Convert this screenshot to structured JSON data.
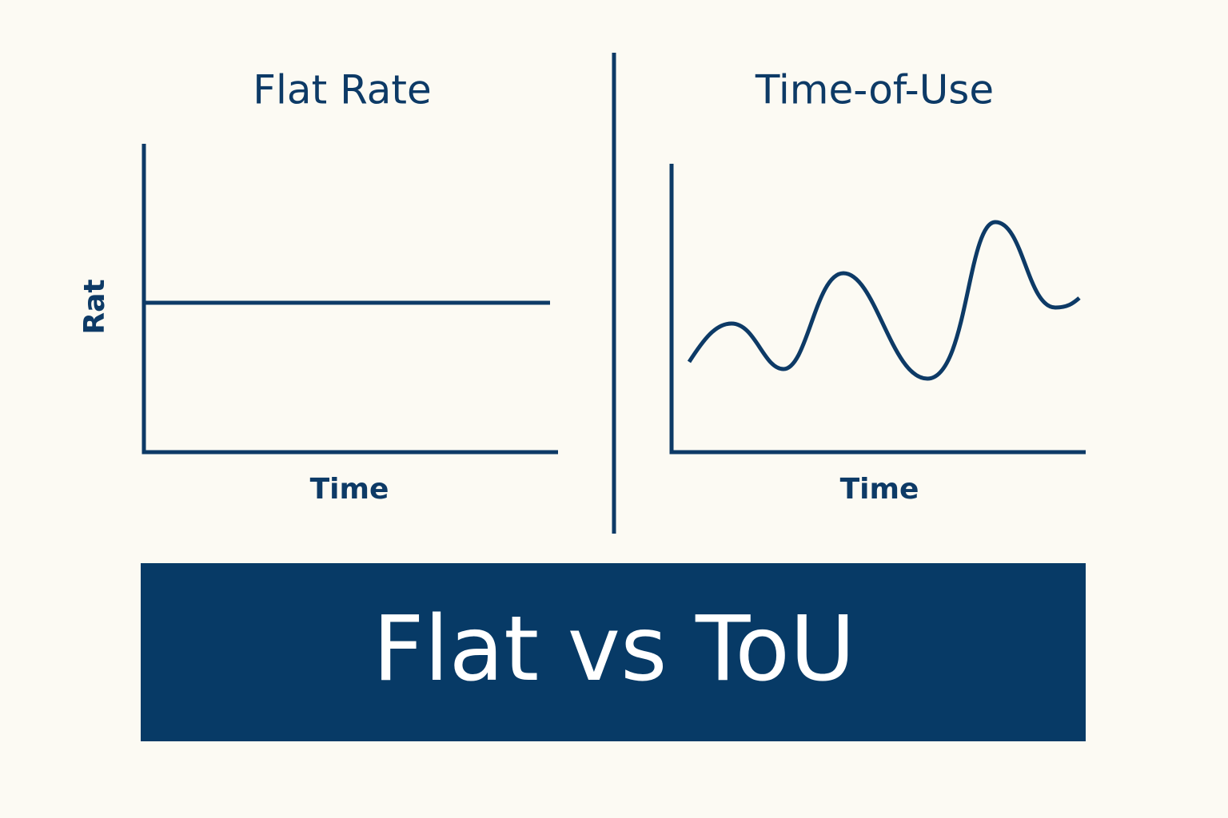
{
  "panels": [
    {
      "title": "Flat Rate",
      "y_label": "Rat",
      "x_label": "Time"
    },
    {
      "title": "Time-of-Use",
      "x_label": "Time"
    }
  ],
  "banner": {
    "text": "Flat vs ToU"
  }
}
